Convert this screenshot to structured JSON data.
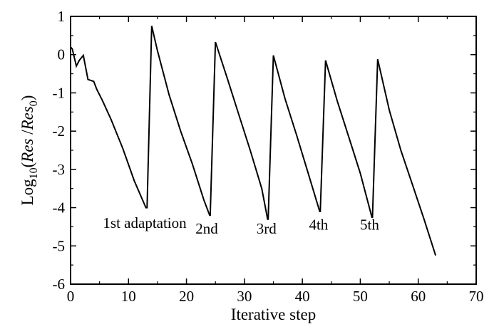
{
  "chart_data": {
    "type": "line",
    "title": "",
    "xlabel": "Iterative step",
    "ylabel": {
      "prefix": "Log",
      "subscript": "10",
      "open": "(",
      "numerator": "Res",
      "slash": " /",
      "denominator": "Res",
      "denominator_subscript": "0",
      "close": ")"
    },
    "xlim": [
      0,
      70
    ],
    "ylim": [
      -6,
      1
    ],
    "xticks": [
      0,
      10,
      20,
      30,
      40,
      50,
      60,
      70
    ],
    "yticks": [
      1,
      0,
      -1,
      -2,
      -3,
      -4,
      -5,
      -6
    ],
    "grid": false,
    "series": [
      {
        "x": [
          0,
          0.3,
          1,
          1.5,
          2.2,
          3,
          4,
          4.5,
          5.5,
          7,
          9,
          11,
          13,
          13.2,
          14,
          15,
          17,
          19,
          21,
          23,
          24,
          24.1,
          25,
          27,
          29,
          31,
          33,
          34,
          34.1,
          35,
          37,
          39,
          41,
          43,
          43.1,
          44,
          46,
          48,
          50,
          52,
          52.1,
          53,
          55,
          57,
          59,
          61,
          63
        ],
        "y": [
          0.2,
          0.15,
          -0.3,
          -0.15,
          -0.02,
          -0.65,
          -0.7,
          -0.9,
          -1.2,
          -1.7,
          -2.45,
          -3.3,
          -4.0,
          -4.0,
          0.75,
          0.1,
          -1.05,
          -2.0,
          -2.85,
          -3.8,
          -4.2,
          -4.2,
          0.33,
          -0.6,
          -1.55,
          -2.5,
          -3.5,
          -4.3,
          -4.3,
          -0.02,
          -1.15,
          -2.1,
          -3.1,
          -4.1,
          -4.1,
          -0.15,
          -1.2,
          -2.15,
          -3.1,
          -4.25,
          -4.25,
          -0.12,
          -1.45,
          -2.5,
          -3.4,
          -4.3,
          -5.25
        ]
      }
    ],
    "annotations": [
      {
        "text": "1st adaptation",
        "x": 12.8,
        "y": -4.4
      },
      {
        "text": "2nd",
        "x": 23.5,
        "y": -4.55
      },
      {
        "text": "3rd",
        "x": 33.8,
        "y": -4.55
      },
      {
        "text": "4th",
        "x": 42.8,
        "y": -4.45
      },
      {
        "text": "5th",
        "x": 51.6,
        "y": -4.45
      }
    ]
  }
}
